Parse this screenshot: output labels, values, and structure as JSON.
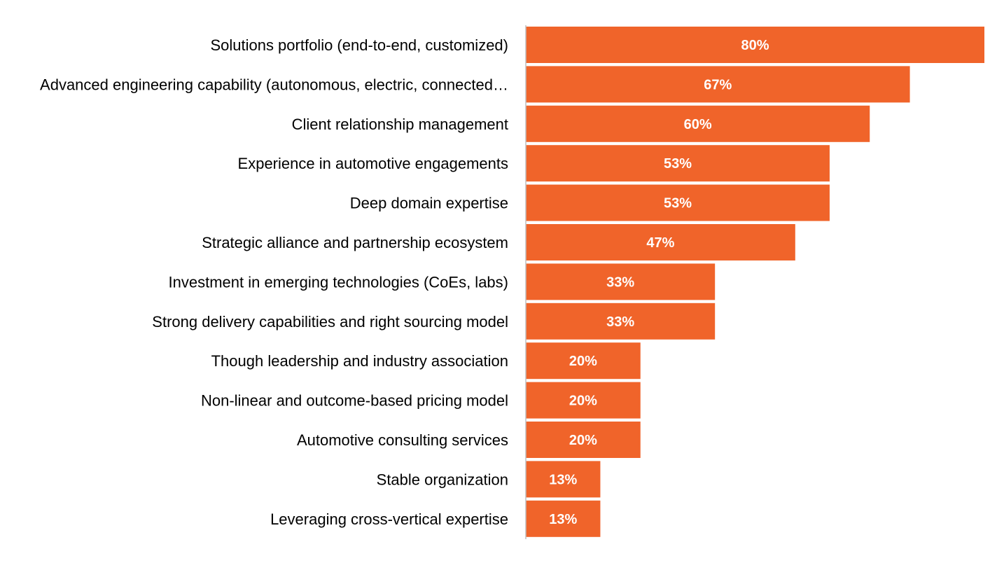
{
  "chart_data": {
    "type": "bar",
    "orientation": "horizontal",
    "categories": [
      "Solutions portfolio (end-to-end, customized)",
      "Advanced engineering capability (autonomous, electric, connected…",
      "Client relationship management",
      "Experience in automotive engagements",
      "Deep domain expertise",
      "Strategic alliance and partnership ecosystem",
      "Investment in emerging technologies (CoEs, labs)",
      "Strong delivery capabilities and right sourcing model",
      "Though leadership and industry association",
      "Non-linear and outcome-based pricing model",
      "Automotive consulting services",
      "Stable organization",
      "Leveraging cross-vertical expertise"
    ],
    "values": [
      80,
      67,
      60,
      53,
      53,
      47,
      33,
      33,
      20,
      20,
      20,
      13,
      13
    ],
    "value_labels": [
      "80%",
      "67%",
      "60%",
      "53%",
      "53%",
      "47%",
      "33%",
      "33%",
      "20%",
      "20%",
      "20%",
      "13%",
      "13%"
    ],
    "xlim": [
      0,
      80
    ],
    "grid": false,
    "legend": "none",
    "bar_color": "#F0642A",
    "axis_color": "#BFBFBF"
  }
}
